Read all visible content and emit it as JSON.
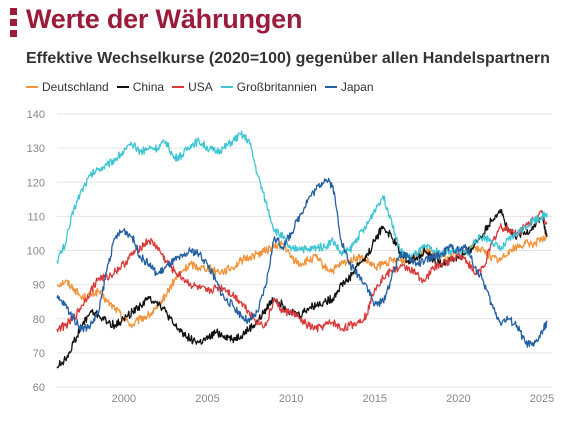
{
  "header": {
    "title": "Werte der Währungen",
    "subtitle": "Effektive Wechselkurse (2020=100) gegenüber allen Handelspartnern"
  },
  "colors": {
    "brand": "#9b1c3a",
    "grid": "#e3e3e3",
    "tick_text": "#888888"
  },
  "chart_data": {
    "type": "line",
    "x_axis": {
      "min": 1996,
      "max": 2025.6,
      "ticks": [
        2000,
        2005,
        2010,
        2015,
        2020,
        2025
      ]
    },
    "y_axis": {
      "min": 60,
      "max": 140,
      "ticks": [
        60,
        70,
        80,
        90,
        100,
        110,
        120,
        130,
        140
      ]
    },
    "grid": "horizontal",
    "legend_position": "top-left",
    "series": [
      {
        "name": "Deutschland",
        "color": "#f0933a",
        "points": [
          [
            1996,
            90
          ],
          [
            1996.5,
            91
          ],
          [
            1997,
            89
          ],
          [
            1997.5,
            86
          ],
          [
            1998,
            87
          ],
          [
            1998.5,
            88
          ],
          [
            1999,
            85
          ],
          [
            1999.5,
            83
          ],
          [
            2000,
            80
          ],
          [
            2000.5,
            78
          ],
          [
            2001,
            80
          ],
          [
            2001.5,
            81
          ],
          [
            2002,
            83
          ],
          [
            2002.5,
            87
          ],
          [
            2003,
            91
          ],
          [
            2003.5,
            94
          ],
          [
            2004,
            96
          ],
          [
            2004.5,
            95
          ],
          [
            2005,
            95
          ],
          [
            2005.5,
            94
          ],
          [
            2006,
            94
          ],
          [
            2006.5,
            95
          ],
          [
            2007,
            97
          ],
          [
            2007.5,
            98
          ],
          [
            2008,
            99
          ],
          [
            2008.5,
            100
          ],
          [
            2009,
            101
          ],
          [
            2009.5,
            102
          ],
          [
            2010,
            98
          ],
          [
            2010.5,
            96
          ],
          [
            2011,
            97
          ],
          [
            2011.5,
            98
          ],
          [
            2012,
            95
          ],
          [
            2012.5,
            94
          ],
          [
            2013,
            96
          ],
          [
            2013.5,
            97
          ],
          [
            2014,
            98
          ],
          [
            2014.5,
            97
          ],
          [
            2015,
            95
          ],
          [
            2015.5,
            96
          ],
          [
            2016,
            97
          ],
          [
            2016.5,
            97
          ],
          [
            2017,
            97
          ],
          [
            2017.5,
            99
          ],
          [
            2018,
            100
          ],
          [
            2018.5,
            99
          ],
          [
            2019,
            98
          ],
          [
            2019.5,
            98
          ],
          [
            2020,
            99
          ],
          [
            2020.5,
            100
          ],
          [
            2021,
            101
          ],
          [
            2021.5,
            100
          ],
          [
            2022,
            98
          ],
          [
            2022.5,
            97
          ],
          [
            2023,
            100
          ],
          [
            2023.5,
            101
          ],
          [
            2024,
            102
          ],
          [
            2024.5,
            102
          ],
          [
            2025,
            103
          ],
          [
            2025.3,
            104
          ]
        ]
      },
      {
        "name": "China",
        "color": "#111111",
        "points": [
          [
            1996,
            66
          ],
          [
            1996.5,
            68
          ],
          [
            1997,
            73
          ],
          [
            1997.5,
            78
          ],
          [
            1998,
            82
          ],
          [
            1998.5,
            81
          ],
          [
            1999,
            79
          ],
          [
            1999.5,
            78
          ],
          [
            2000,
            80
          ],
          [
            2000.5,
            82
          ],
          [
            2001,
            84
          ],
          [
            2001.5,
            86
          ],
          [
            2002,
            85
          ],
          [
            2002.5,
            82
          ],
          [
            2003,
            78
          ],
          [
            2003.5,
            76
          ],
          [
            2004,
            74
          ],
          [
            2004.5,
            73
          ],
          [
            2005,
            74
          ],
          [
            2005.5,
            76
          ],
          [
            2006,
            75
          ],
          [
            2006.5,
            74
          ],
          [
            2007,
            75
          ],
          [
            2007.5,
            77
          ],
          [
            2008,
            79
          ],
          [
            2008.5,
            83
          ],
          [
            2009,
            86
          ],
          [
            2009.5,
            84
          ],
          [
            2010,
            82
          ],
          [
            2010.5,
            81
          ],
          [
            2011,
            83
          ],
          [
            2011.5,
            84
          ],
          [
            2012,
            85
          ],
          [
            2012.5,
            86
          ],
          [
            2013,
            90
          ],
          [
            2013.5,
            92
          ],
          [
            2014,
            96
          ],
          [
            2014.5,
            98
          ],
          [
            2015,
            103
          ],
          [
            2015.5,
            107
          ],
          [
            2016,
            104
          ],
          [
            2016.5,
            100
          ],
          [
            2017,
            97
          ],
          [
            2017.5,
            98
          ],
          [
            2018,
            100
          ],
          [
            2018.5,
            97
          ],
          [
            2019,
            96
          ],
          [
            2019.5,
            97
          ],
          [
            2020,
            98
          ],
          [
            2020.5,
            99
          ],
          [
            2021,
            102
          ],
          [
            2021.5,
            105
          ],
          [
            2022,
            109
          ],
          [
            2022.5,
            112
          ],
          [
            2023,
            106
          ],
          [
            2023.5,
            104
          ],
          [
            2024,
            105
          ],
          [
            2024.5,
            107
          ],
          [
            2025,
            110
          ],
          [
            2025.3,
            104
          ]
        ]
      },
      {
        "name": "USA",
        "color": "#d93a3a",
        "points": [
          [
            1996,
            77
          ],
          [
            1996.5,
            78
          ],
          [
            1997,
            80
          ],
          [
            1997.5,
            84
          ],
          [
            1998,
            88
          ],
          [
            1998.5,
            92
          ],
          [
            1999,
            92
          ],
          [
            1999.5,
            94
          ],
          [
            2000,
            96
          ],
          [
            2000.5,
            99
          ],
          [
            2001,
            101
          ],
          [
            2001.5,
            103
          ],
          [
            2002,
            101
          ],
          [
            2002.5,
            97
          ],
          [
            2003,
            94
          ],
          [
            2003.5,
            92
          ],
          [
            2004,
            90
          ],
          [
            2004.5,
            89
          ],
          [
            2005,
            88
          ],
          [
            2005.5,
            89
          ],
          [
            2006,
            89
          ],
          [
            2006.5,
            87
          ],
          [
            2007,
            85
          ],
          [
            2007.5,
            82
          ],
          [
            2008,
            79
          ],
          [
            2008.5,
            78
          ],
          [
            2009,
            86
          ],
          [
            2009.5,
            82
          ],
          [
            2010,
            82
          ],
          [
            2010.5,
            80
          ],
          [
            2011,
            78
          ],
          [
            2011.5,
            77
          ],
          [
            2012,
            78
          ],
          [
            2012.5,
            79
          ],
          [
            2013,
            77
          ],
          [
            2013.5,
            78
          ],
          [
            2014,
            79
          ],
          [
            2014.5,
            81
          ],
          [
            2015,
            89
          ],
          [
            2015.5,
            92
          ],
          [
            2016,
            94
          ],
          [
            2016.5,
            95
          ],
          [
            2017,
            95
          ],
          [
            2017.5,
            93
          ],
          [
            2018,
            91
          ],
          [
            2018.5,
            95
          ],
          [
            2019,
            96
          ],
          [
            2019.5,
            97
          ],
          [
            2020,
            99
          ],
          [
            2020.5,
            97
          ],
          [
            2021,
            93
          ],
          [
            2021.5,
            95
          ],
          [
            2022,
            102
          ],
          [
            2022.5,
            107
          ],
          [
            2023,
            106
          ],
          [
            2023.5,
            105
          ],
          [
            2024,
            107
          ],
          [
            2024.5,
            109
          ],
          [
            2025,
            111
          ],
          [
            2025.3,
            108
          ]
        ]
      },
      {
        "name": "Großbritannien",
        "color": "#3fc5d4",
        "points": [
          [
            1996,
            97
          ],
          [
            1996.5,
            102
          ],
          [
            1997,
            112
          ],
          [
            1997.5,
            118
          ],
          [
            1998,
            122
          ],
          [
            1998.5,
            124
          ],
          [
            1999,
            125
          ],
          [
            1999.5,
            127
          ],
          [
            2000,
            129
          ],
          [
            2000.5,
            131
          ],
          [
            2001,
            129
          ],
          [
            2001.5,
            130
          ],
          [
            2002,
            130
          ],
          [
            2002.5,
            132
          ],
          [
            2003,
            127
          ],
          [
            2003.5,
            128
          ],
          [
            2004,
            131
          ],
          [
            2004.5,
            132
          ],
          [
            2005,
            130
          ],
          [
            2005.5,
            129
          ],
          [
            2006,
            130
          ],
          [
            2006.5,
            132
          ],
          [
            2007,
            134
          ],
          [
            2007.5,
            132
          ],
          [
            2008,
            122
          ],
          [
            2008.5,
            114
          ],
          [
            2009,
            106
          ],
          [
            2009.5,
            104
          ],
          [
            2010,
            100
          ],
          [
            2010.5,
            101
          ],
          [
            2011,
            100
          ],
          [
            2011.5,
            101
          ],
          [
            2012,
            101
          ],
          [
            2012.5,
            103
          ],
          [
            2013,
            99
          ],
          [
            2013.5,
            100
          ],
          [
            2014,
            104
          ],
          [
            2014.5,
            107
          ],
          [
            2015,
            112
          ],
          [
            2015.5,
            116
          ],
          [
            2016,
            109
          ],
          [
            2016.5,
            100
          ],
          [
            2017,
            98
          ],
          [
            2017.5,
            99
          ],
          [
            2018,
            101
          ],
          [
            2018.5,
            100
          ],
          [
            2019,
            99
          ],
          [
            2019.5,
            100
          ],
          [
            2020,
            100
          ],
          [
            2020.5,
            99
          ],
          [
            2021,
            103
          ],
          [
            2021.5,
            104
          ],
          [
            2022,
            103
          ],
          [
            2022.5,
            100
          ],
          [
            2023,
            103
          ],
          [
            2023.5,
            105
          ],
          [
            2024,
            107
          ],
          [
            2024.5,
            109
          ],
          [
            2025,
            110
          ],
          [
            2025.3,
            111
          ]
        ]
      },
      {
        "name": "Japan",
        "color": "#2560a3",
        "points": [
          [
            1996,
            86
          ],
          [
            1996.5,
            84
          ],
          [
            1997,
            80
          ],
          [
            1997.5,
            77
          ],
          [
            1998,
            78
          ],
          [
            1998.5,
            82
          ],
          [
            1999,
            95
          ],
          [
            1999.5,
            104
          ],
          [
            2000,
            106
          ],
          [
            2000.5,
            104
          ],
          [
            2001,
            98
          ],
          [
            2001.5,
            96
          ],
          [
            2002,
            93
          ],
          [
            2002.5,
            95
          ],
          [
            2003,
            97
          ],
          [
            2003.5,
            98
          ],
          [
            2004,
            100
          ],
          [
            2004.5,
            99
          ],
          [
            2005,
            96
          ],
          [
            2005.5,
            91
          ],
          [
            2006,
            86
          ],
          [
            2006.5,
            84
          ],
          [
            2007,
            81
          ],
          [
            2007.5,
            79
          ],
          [
            2008,
            82
          ],
          [
            2008.5,
            90
          ],
          [
            2009,
            104
          ],
          [
            2009.5,
            101
          ],
          [
            2010,
            105
          ],
          [
            2010.5,
            110
          ],
          [
            2011,
            115
          ],
          [
            2011.5,
            118
          ],
          [
            2012,
            121
          ],
          [
            2012.5,
            119
          ],
          [
            2013,
            103
          ],
          [
            2013.5,
            96
          ],
          [
            2014,
            93
          ],
          [
            2014.5,
            90
          ],
          [
            2015,
            84
          ],
          [
            2015.5,
            85
          ],
          [
            2016,
            92
          ],
          [
            2016.5,
            99
          ],
          [
            2017,
            98
          ],
          [
            2017.5,
            96
          ],
          [
            2018,
            97
          ],
          [
            2018.5,
            98
          ],
          [
            2019,
            99
          ],
          [
            2019.5,
            101
          ],
          [
            2020,
            100
          ],
          [
            2020.5,
            101
          ],
          [
            2021,
            95
          ],
          [
            2021.5,
            91
          ],
          [
            2022,
            84
          ],
          [
            2022.5,
            79
          ],
          [
            2023,
            80
          ],
          [
            2023.5,
            78
          ],
          [
            2024,
            73
          ],
          [
            2024.5,
            72
          ],
          [
            2025,
            76
          ],
          [
            2025.3,
            79
          ]
        ]
      }
    ]
  }
}
